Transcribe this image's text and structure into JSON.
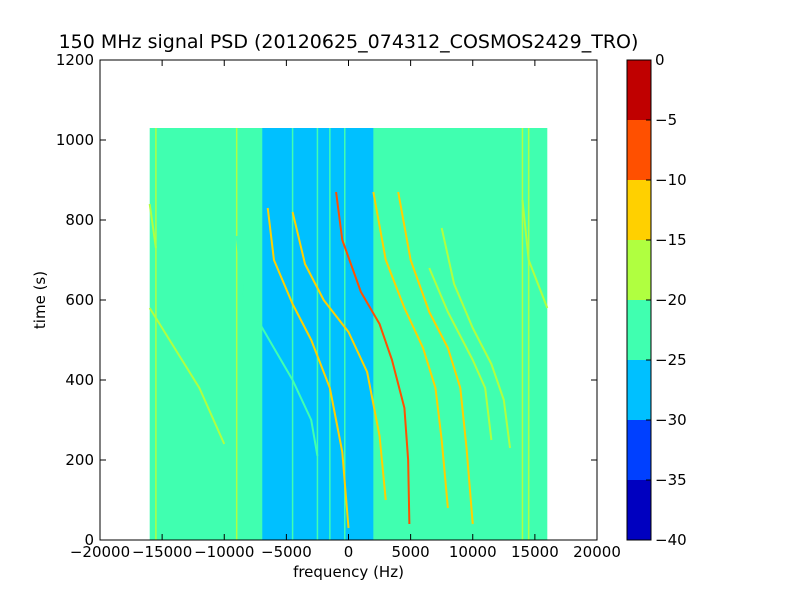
{
  "chart_data": {
    "type": "heatmap",
    "title": "150 MHz signal PSD (20120625_074312_COSMOS2429_TRO)",
    "xlabel": "frequency (Hz)",
    "ylabel": "time (s)",
    "xlim": [
      -20000,
      20000
    ],
    "ylim": [
      0,
      1200
    ],
    "x_ticks": [
      -20000,
      -15000,
      -10000,
      -5000,
      0,
      5000,
      10000,
      15000,
      20000
    ],
    "x_tick_labels": [
      "−20000",
      "−15000",
      "−10000",
      "−5000",
      "0",
      "5000",
      "10000",
      "15000",
      "20000"
    ],
    "y_ticks": [
      0,
      200,
      400,
      600,
      800,
      1000,
      1200
    ],
    "y_tick_labels": [
      "0",
      "200",
      "400",
      "600",
      "800",
      "1000",
      "1200"
    ],
    "data_extent": {
      "x": [
        -16000,
        16000
      ],
      "y": [
        0,
        1030
      ]
    },
    "colorbar": {
      "range": [
        -40,
        0
      ],
      "ticks": [
        0,
        -5,
        -10,
        -15,
        -20,
        -25,
        -30,
        -35,
        -40
      ],
      "tick_labels": [
        "0",
        "−5",
        "−10",
        "−15",
        "−20",
        "−25",
        "−30",
        "−35",
        "−40"
      ],
      "levels": [
        {
          "from": -40,
          "to": -35,
          "color": "#0000c0"
        },
        {
          "from": -35,
          "to": -30,
          "color": "#0040ff"
        },
        {
          "from": -30,
          "to": -25,
          "color": "#00c0ff"
        },
        {
          "from": -25,
          "to": -20,
          "color": "#40ffb0"
        },
        {
          "from": -20,
          "to": -15,
          "color": "#b0ff40"
        },
        {
          "from": -15,
          "to": -10,
          "color": "#ffd000"
        },
        {
          "from": -10,
          "to": -5,
          "color": "#ff5000"
        },
        {
          "from": -5,
          "to": 0,
          "color": "#c00000"
        }
      ]
    },
    "background_level": -22.5,
    "low_noise_band": {
      "x": [
        -7000,
        2000
      ],
      "level": -27.5
    },
    "vertical_lines": [
      {
        "x": -15500,
        "level": -17.5
      },
      {
        "x": -9000,
        "level": -17.5
      },
      {
        "x": -8500,
        "level": -22.5
      },
      {
        "x": -7000,
        "level": -22.5
      },
      {
        "x": -4500,
        "level": -22.5
      },
      {
        "x": -2500,
        "level": -22.5
      },
      {
        "x": -1500,
        "level": -22.5
      },
      {
        "x": -300,
        "level": -22.5
      },
      {
        "x": 14000,
        "level": -17.5
      },
      {
        "x": 14500,
        "level": -17.5
      }
    ],
    "doppler_traces": [
      {
        "points": [
          [
            -16000,
            580
          ],
          [
            -14000,
            480
          ],
          [
            -12000,
            380
          ],
          [
            -10000,
            240
          ]
        ],
        "level": -17.5
      },
      {
        "points": [
          [
            -16000,
            840
          ],
          [
            -15500,
            730
          ]
        ],
        "level": -17.5
      },
      {
        "points": [
          [
            -9000,
            760
          ],
          [
            -8500,
            620
          ],
          [
            -7500,
            560
          ],
          [
            -6000,
            480
          ],
          [
            -4500,
            400
          ],
          [
            -3000,
            300
          ],
          [
            -2500,
            210
          ]
        ],
        "level": -22.5
      },
      {
        "points": [
          [
            -6500,
            830
          ],
          [
            -6000,
            700
          ],
          [
            -4500,
            590
          ],
          [
            -3000,
            500
          ],
          [
            -1500,
            380
          ],
          [
            -500,
            220
          ],
          [
            0,
            30
          ]
        ],
        "level": -12.5
      },
      {
        "points": [
          [
            -4500,
            820
          ],
          [
            -3500,
            690
          ],
          [
            -2000,
            600
          ],
          [
            0,
            520
          ],
          [
            1500,
            420
          ],
          [
            2500,
            260
          ],
          [
            3000,
            100
          ]
        ],
        "level": -12.5
      },
      {
        "points": [
          [
            -1000,
            870
          ],
          [
            -500,
            750
          ],
          [
            1000,
            620
          ],
          [
            2500,
            540
          ],
          [
            3500,
            450
          ],
          [
            4500,
            330
          ],
          [
            4800,
            200
          ],
          [
            4900,
            40
          ]
        ],
        "level": -7.5
      },
      {
        "points": [
          [
            2000,
            870
          ],
          [
            3000,
            700
          ],
          [
            4500,
            580
          ],
          [
            6000,
            480
          ],
          [
            7000,
            380
          ],
          [
            7500,
            250
          ],
          [
            8000,
            80
          ]
        ],
        "level": -12.5
      },
      {
        "points": [
          [
            4000,
            870
          ],
          [
            5000,
            700
          ],
          [
            6500,
            570
          ],
          [
            8000,
            480
          ],
          [
            9000,
            380
          ],
          [
            9500,
            230
          ],
          [
            10000,
            40
          ]
        ],
        "level": -12.5
      },
      {
        "points": [
          [
            7500,
            780
          ],
          [
            8500,
            640
          ],
          [
            10000,
            530
          ],
          [
            11500,
            440
          ],
          [
            12500,
            350
          ],
          [
            13000,
            230
          ]
        ],
        "level": -17.5
      },
      {
        "points": [
          [
            6500,
            680
          ],
          [
            8000,
            570
          ],
          [
            10000,
            450
          ],
          [
            11000,
            380
          ],
          [
            11500,
            250
          ]
        ],
        "level": -17.5
      },
      {
        "points": [
          [
            14000,
            850
          ],
          [
            14500,
            700
          ],
          [
            15500,
            620
          ],
          [
            16000,
            580
          ]
        ],
        "level": -17.5
      }
    ]
  }
}
